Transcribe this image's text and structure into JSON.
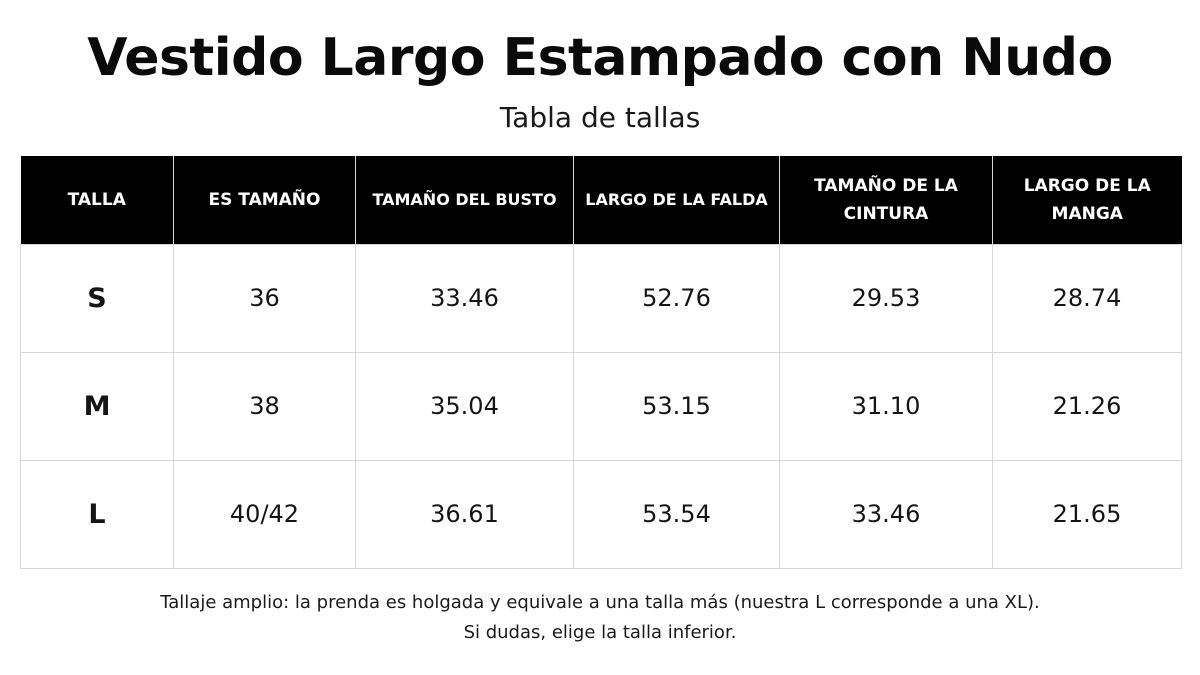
{
  "title": "Vestido Largo Estampado con Nudo",
  "subtitle": "Tabla de tallas",
  "table": {
    "headers": [
      "TALLA",
      "ES TAMAÑO",
      "TAMAÑO DEL BUSTO",
      "LARGO DE LA FALDA",
      "TAMAÑO DE LA CINTURA",
      "LARGO DE LA MANGA"
    ],
    "rows": [
      [
        "S",
        "36",
        "33.46",
        "52.76",
        "29.53",
        "28.74"
      ],
      [
        "M",
        "38",
        "35.04",
        "53.15",
        "31.10",
        "21.26"
      ],
      [
        "L",
        "40/42",
        "36.61",
        "53.54",
        "33.46",
        "21.65"
      ]
    ]
  },
  "note": {
    "line1": "Tallaje amplio: la prenda es holgada y equivale a una talla más (nuestra L corresponde a una XL).",
    "line2": "Si dudas, elige la talla inferior."
  }
}
